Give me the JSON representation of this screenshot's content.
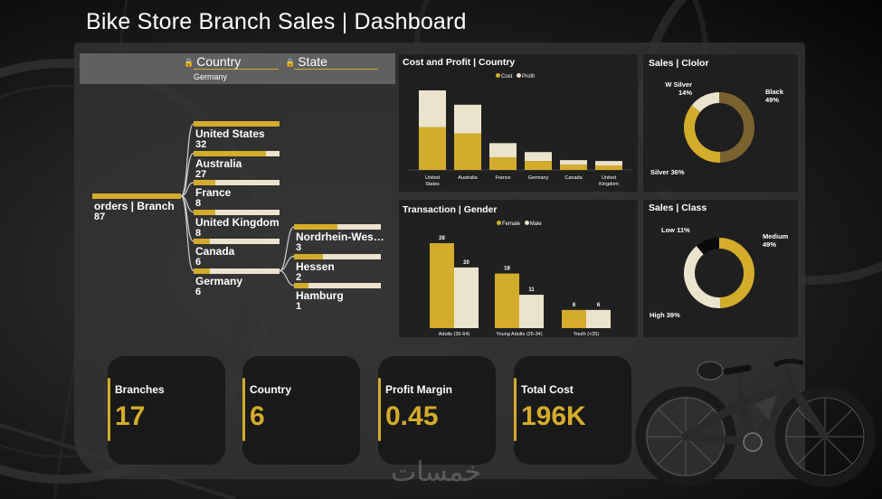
{
  "header": {
    "title": "Bike Store Branch Sales | Dashboard"
  },
  "slicers": {
    "country": {
      "label": "Country",
      "selected": "Germany",
      "lock_icon": "lock-icon"
    },
    "state": {
      "label": "State",
      "lock_icon": "lock-icon"
    }
  },
  "decomposition_tree": {
    "root": {
      "label": "orders | Branch",
      "value": "87",
      "fraction": 1.0
    },
    "countries": [
      {
        "label": "United States",
        "value": "32",
        "fraction": 1.0
      },
      {
        "label": "Australia",
        "value": "27",
        "fraction": 0.84
      },
      {
        "label": "France",
        "value": "8",
        "fraction": 0.25
      },
      {
        "label": "United Kingdom",
        "value": "8",
        "fraction": 0.25
      },
      {
        "label": "Canada",
        "value": "6",
        "fraction": 0.19
      },
      {
        "label": "Germany",
        "value": "6",
        "fraction": 0.19
      }
    ],
    "states": [
      {
        "label": "Nordrhein-Wes…",
        "value": "3",
        "fraction": 0.5
      },
      {
        "label": "Hessen",
        "value": "2",
        "fraction": 0.33
      },
      {
        "label": "Hamburg",
        "value": "1",
        "fraction": 0.17
      }
    ]
  },
  "colors": {
    "gold": "#d4ac2b",
    "cream": "#ece3cc",
    "olive": "#7a6230",
    "black": "#0a0a0a"
  },
  "chart_data": [
    {
      "type": "bar",
      "title": "Cost and Profit | Country",
      "stacked": true,
      "categories": [
        "United States",
        "Australia",
        "France",
        "Germany",
        "Canada",
        "United Kingdom"
      ],
      "series": [
        {
          "name": "Cost",
          "values": [
            48,
            41,
            14,
            10,
            6,
            5
          ]
        },
        {
          "name": "Profit",
          "values": [
            41,
            32,
            16,
            10,
            5,
            5
          ]
        }
      ],
      "legend": "top-center"
    },
    {
      "type": "bar",
      "title": "Transaction | Gender",
      "categories": [
        "Adults (35-64)",
        "Young Adults (25-34)",
        "Youth (<25)"
      ],
      "series": [
        {
          "name": "Female",
          "values": [
            28,
            18,
            6
          ]
        },
        {
          "name": "Male",
          "values": [
            20,
            11,
            6
          ]
        }
      ],
      "legend": "top-center"
    },
    {
      "type": "pie",
      "title": "Sales | Clolor",
      "donut": true,
      "slices": [
        {
          "label": "Black",
          "value": 49
        },
        {
          "label": "Silver",
          "value": 36
        },
        {
          "label": "W Silver",
          "value": 14
        }
      ]
    },
    {
      "type": "pie",
      "title": "Sales | Class",
      "donut": true,
      "slices": [
        {
          "label": "Medium",
          "value": 49
        },
        {
          "label": "High",
          "value": 39
        },
        {
          "label": "Low",
          "value": 11
        }
      ]
    }
  ],
  "kpis": [
    {
      "label": "Branches",
      "value": "17"
    },
    {
      "label": "Country",
      "value": "6"
    },
    {
      "label": "Profit Margin",
      "value": "0.45"
    },
    {
      "label": "Total Cost",
      "value": "196K"
    }
  ],
  "watermark": "خمسات"
}
